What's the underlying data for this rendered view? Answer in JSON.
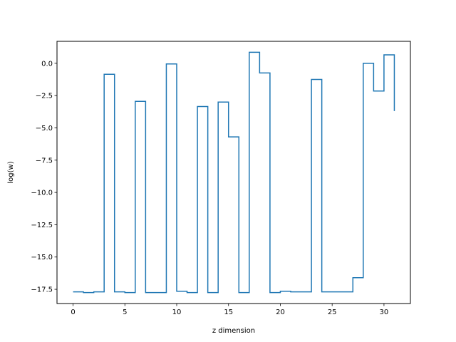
{
  "chart_data": {
    "type": "line",
    "drawstyle": "steps-post",
    "title": "",
    "xlabel": "z dimension",
    "ylabel": "log(w)",
    "xlim": [
      -1.55,
      32.55
    ],
    "ylim": [
      -18.6,
      1.7
    ],
    "xticks": [
      0,
      5,
      10,
      15,
      20,
      25,
      30
    ],
    "xtick_labels": [
      "0",
      "5",
      "10",
      "15",
      "20",
      "25",
      "30"
    ],
    "yticks": [
      0.0,
      -2.5,
      -5.0,
      -7.5,
      -10.0,
      -12.5,
      -15.0,
      -17.5
    ],
    "ytick_labels": [
      "0.0",
      "−2.5",
      "−5.0",
      "−7.5",
      "−10.0",
      "−12.5",
      "−15.0",
      "−17.5"
    ],
    "grid": false,
    "series_color": "#1f77b4",
    "series": [
      {
        "x": [
          0,
          1,
          2,
          3,
          4,
          5,
          6,
          7,
          8,
          9,
          10,
          11,
          12,
          13,
          14,
          15,
          16,
          17,
          18,
          19,
          20,
          21,
          22,
          23,
          24,
          25,
          26,
          27,
          28,
          29,
          30,
          31
        ],
        "values": [
          -17.7,
          -17.75,
          -17.7,
          -0.85,
          -17.7,
          -17.75,
          -2.95,
          -17.75,
          -17.75,
          -0.05,
          -17.65,
          -17.75,
          -3.35,
          -17.75,
          -3.0,
          -5.7,
          -17.75,
          0.85,
          -0.75,
          -17.75,
          -17.65,
          -17.7,
          -17.7,
          -1.25,
          -17.7,
          -17.7,
          -17.7,
          -16.6,
          0.0,
          -2.15,
          0.65,
          -3.7
        ]
      }
    ]
  }
}
